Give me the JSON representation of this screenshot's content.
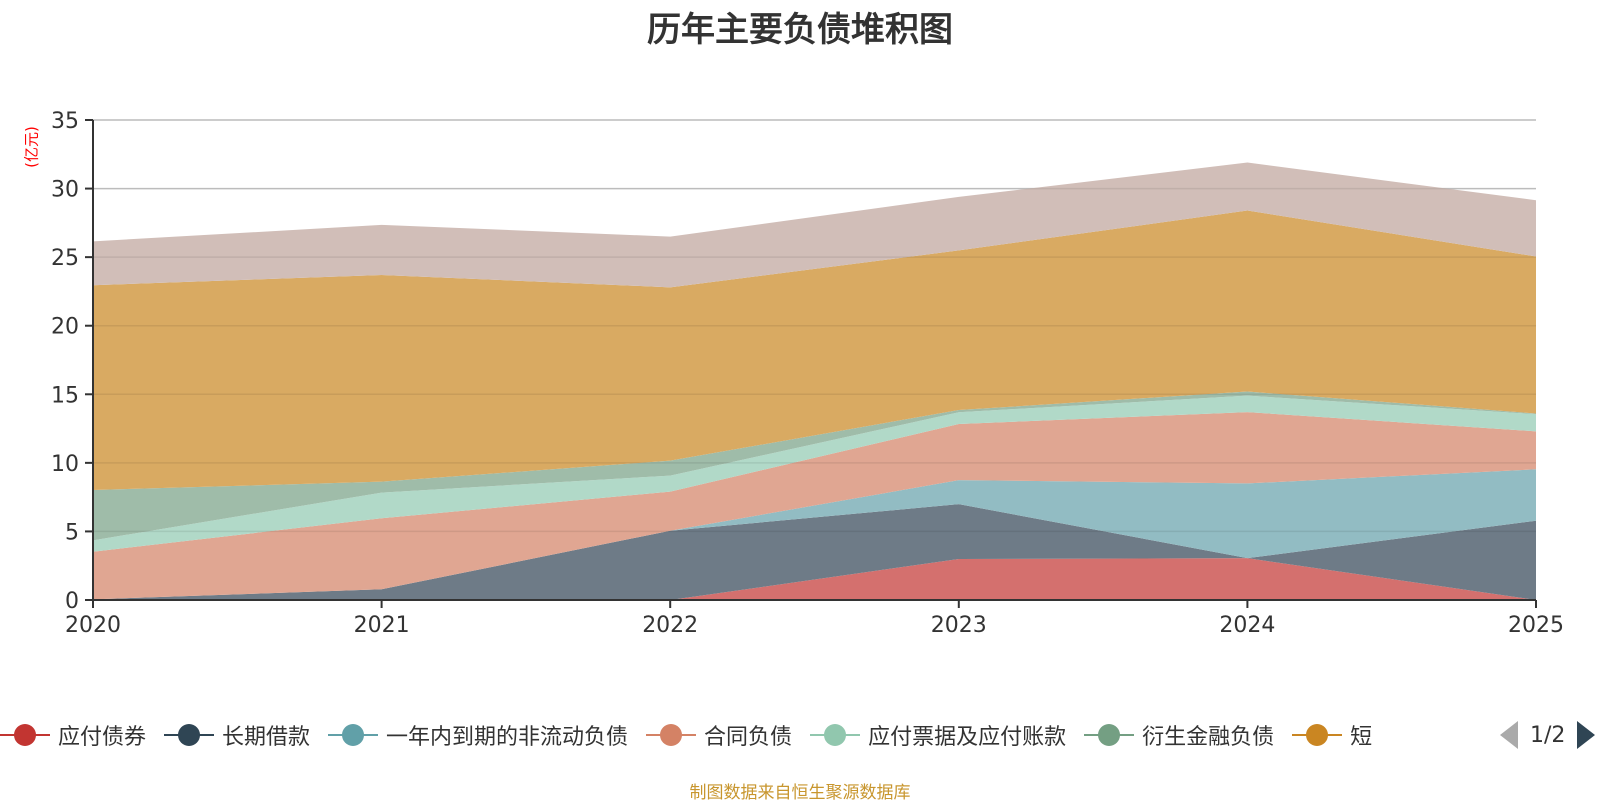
{
  "chart_data": {
    "type": "area",
    "stacked": true,
    "title": "历年主要负债堆积图",
    "ylabel": "(亿元)",
    "xlabel": "",
    "x": [
      "2020",
      "2021",
      "2022",
      "2023",
      "2024",
      "2025"
    ],
    "ylim": [
      0,
      35
    ],
    "yticks": [
      0,
      5,
      10,
      15,
      20,
      25,
      30,
      35
    ],
    "grid": true,
    "legend_position": "bottom",
    "series": [
      {
        "name": "应付债券",
        "color": "#c23531",
        "fill": "#d4706e",
        "values": [
          0,
          0,
          0,
          2.99,
          3.05,
          0
        ]
      },
      {
        "name": "长期借款",
        "color": "#2f4554",
        "fill": "#6e7b87",
        "values": [
          0.05,
          0.78,
          5.05,
          4.0,
          0,
          5.78
        ]
      },
      {
        "name": "一年内到期的非流动负债",
        "color": "#61a0a8",
        "fill": "#92bcc3",
        "values": [
          0,
          0,
          0,
          1.75,
          5.45,
          3.75
        ]
      },
      {
        "name": "合同负债",
        "color": "#d48265",
        "fill": "#e0a692",
        "values": [
          3.47,
          5.18,
          2.85,
          4.09,
          5.2,
          2.77
        ]
      },
      {
        "name": "应付票据及应付账款",
        "color": "#91c7ae",
        "fill": "#b1d9c8",
        "values": [
          0.83,
          1.87,
          1.17,
          0.86,
          1.2,
          1.25
        ]
      },
      {
        "name": "衍生金融负债",
        "color": "#749f83",
        "fill": "#9fbca9",
        "values": [
          3.67,
          0.8,
          1.09,
          0.16,
          0.3,
          0.05
        ]
      },
      {
        "name": "短",
        "color": "#ca8622",
        "fill": "#d9aa62",
        "values": [
          14.93,
          15.07,
          12.64,
          11.64,
          13.2,
          11.45
        ]
      },
      {
        "name": "",
        "color": "#bda29a",
        "fill": "#d1beb8",
        "values": [
          3.2,
          3.65,
          3.7,
          3.9,
          3.5,
          4.1
        ]
      }
    ]
  },
  "legend": {
    "items": [
      {
        "label": "应付债券",
        "color": "#c23531"
      },
      {
        "label": "长期借款",
        "color": "#2f4554"
      },
      {
        "label": "一年内到期的非流动负债",
        "color": "#61a0a8"
      },
      {
        "label": "合同负债",
        "color": "#d48265"
      },
      {
        "label": "应付票据及应付账款",
        "color": "#91c7ae"
      },
      {
        "label": "衍生金融负债",
        "color": "#749f83"
      },
      {
        "label": "短",
        "color": "#ca8622"
      }
    ],
    "page": "1/2"
  },
  "footer": "制图数据来自恒生聚源数据库"
}
